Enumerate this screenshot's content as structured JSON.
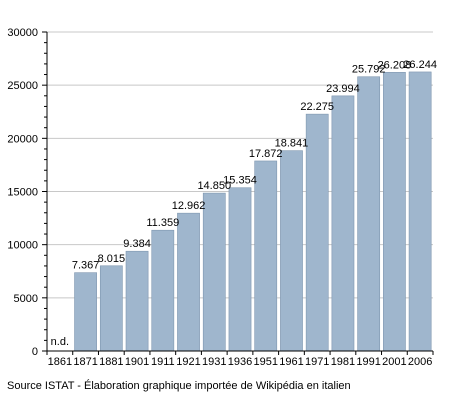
{
  "chart_data": {
    "type": "bar",
    "categories": [
      "1861",
      "1871",
      "1881",
      "1901",
      "1911",
      "1921",
      "1931",
      "1936",
      "1951",
      "1961",
      "1971",
      "1981",
      "1991",
      "2001",
      "2006"
    ],
    "values": [
      null,
      7367,
      8015,
      9384,
      11359,
      12962,
      14850,
      15354,
      17872,
      18841,
      22275,
      23994,
      25792,
      26208,
      26244
    ],
    "data_labels": [
      "n.d.",
      "7.367",
      "8.015",
      "9.384",
      "11.359",
      "12.962",
      "14.850",
      "15.354",
      "17.872",
      "18.841",
      "22.275",
      "23.994",
      "25.792",
      "26.208",
      "26.244"
    ],
    "ylim": [
      0,
      30000
    ],
    "yticks": [
      0,
      5000,
      10000,
      15000,
      20000,
      25000,
      30000
    ],
    "ytick_labels": [
      "0",
      "5000",
      "10000",
      "15000",
      "20000",
      "25000",
      "30000"
    ],
    "title": "",
    "xlabel": "",
    "ylabel": "",
    "grid": true,
    "bar_color": "#9fb6cd",
    "bar_edge_color": "#7f97af",
    "grid_color": "#c8c8c8"
  },
  "footer": {
    "source": "Source ISTAT - Élaboration graphique importée de Wikipédia en italien"
  }
}
